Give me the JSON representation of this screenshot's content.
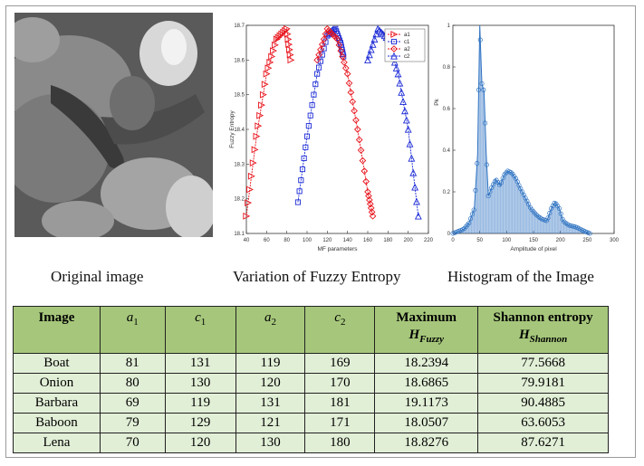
{
  "captions": {
    "image": "Original image",
    "fuzzy": "Variation of Fuzzy Entropy",
    "histogram": "Histogram of the Image"
  },
  "chart_data": [
    {
      "type": "line",
      "title": "",
      "xlabel": "MF parameters",
      "ylabel": "Fuzzy Entropy",
      "xlim": [
        40,
        220
      ],
      "ylim": [
        18.1,
        18.7
      ],
      "xticks": [
        40,
        60,
        80,
        100,
        120,
        140,
        160,
        180,
        200,
        220
      ],
      "yticks": [
        18.1,
        18.2,
        18.3,
        18.4,
        18.5,
        18.6,
        18.7
      ],
      "grid": false,
      "legend_position": "top-right",
      "series": [
        {
          "name": "a1",
          "color": "#e8141c",
          "marker": "triangle-right",
          "x": [
            40,
            50,
            60,
            70,
            80,
            84
          ],
          "y": [
            18.15,
            18.38,
            18.56,
            18.66,
            18.69,
            18.6
          ]
        },
        {
          "name": "c1",
          "color": "#1c2bd6",
          "marker": "square",
          "x": [
            91,
            100,
            110,
            120,
            128,
            133,
            136
          ],
          "y": [
            18.19,
            18.38,
            18.56,
            18.67,
            18.69,
            18.65,
            18.61
          ]
        },
        {
          "name": "a2",
          "color": "#e8141c",
          "marker": "diamond",
          "x": [
            110,
            120,
            130,
            140,
            150,
            160,
            165
          ],
          "y": [
            18.6,
            18.69,
            18.66,
            18.56,
            18.4,
            18.22,
            18.15
          ]
        },
        {
          "name": "c2",
          "color": "#1c2bd6",
          "marker": "triangle-up",
          "x": [
            160,
            170,
            180,
            190,
            200,
            210
          ],
          "y": [
            18.6,
            18.69,
            18.66,
            18.56,
            18.4,
            18.15
          ]
        }
      ]
    },
    {
      "type": "bar",
      "title": "",
      "xlabel": "Amplitude of pixel",
      "ylabel": "Pk",
      "xlim": [
        0,
        300
      ],
      "ylim": [
        0,
        1
      ],
      "xticks": [
        0,
        50,
        100,
        150,
        200,
        250,
        300
      ],
      "yticks": [
        0,
        0.2,
        0.4,
        0.6,
        0.8,
        1
      ],
      "grid": false,
      "color": "#2f73c2",
      "points": [
        [
          0,
          0
        ],
        [
          10,
          0.01
        ],
        [
          20,
          0.02
        ],
        [
          30,
          0.05
        ],
        [
          40,
          0.12
        ],
        [
          46,
          0.38
        ],
        [
          50,
          1.0
        ],
        [
          54,
          0.72
        ],
        [
          58,
          0.68
        ],
        [
          62,
          0.38
        ],
        [
          66,
          0.18
        ],
        [
          72,
          0.22
        ],
        [
          80,
          0.26
        ],
        [
          88,
          0.23
        ],
        [
          95,
          0.28
        ],
        [
          102,
          0.3
        ],
        [
          110,
          0.29
        ],
        [
          118,
          0.26
        ],
        [
          125,
          0.22
        ],
        [
          135,
          0.17
        ],
        [
          145,
          0.12
        ],
        [
          155,
          0.09
        ],
        [
          165,
          0.07
        ],
        [
          175,
          0.06
        ],
        [
          183,
          0.12
        ],
        [
          190,
          0.15
        ],
        [
          198,
          0.12
        ],
        [
          205,
          0.06
        ],
        [
          215,
          0.04
        ],
        [
          230,
          0.03
        ],
        [
          245,
          0.01
        ],
        [
          255,
          0.0
        ]
      ]
    }
  ],
  "table": {
    "headers": {
      "image": "Image",
      "a1": "a",
      "a1_sub": "1",
      "c1": "c",
      "c1_sub": "1",
      "a2": "a",
      "a2_sub": "2",
      "c2": "c",
      "c2_sub": "2",
      "max_line1": "Maximum",
      "max_line2": "H",
      "max_sub": "Fuzzy",
      "shannon_line1": "Shannon entropy",
      "shannon_line2": "H",
      "shannon_sub": "Shannon"
    },
    "rows": [
      [
        "Boat",
        "81",
        "131",
        "119",
        "169",
        "18.2394",
        "77.5668"
      ],
      [
        "Onion",
        "80",
        "130",
        "120",
        "170",
        "18.6865",
        "79.9181"
      ],
      [
        "Barbara",
        "69",
        "119",
        "131",
        "181",
        "19.1173",
        "90.4885"
      ],
      [
        "Baboon",
        "79",
        "129",
        "121",
        "171",
        "18.0507",
        "63.6053"
      ],
      [
        "Lena",
        "70",
        "120",
        "130",
        "180",
        "18.8276",
        "87.6271"
      ]
    ]
  }
}
